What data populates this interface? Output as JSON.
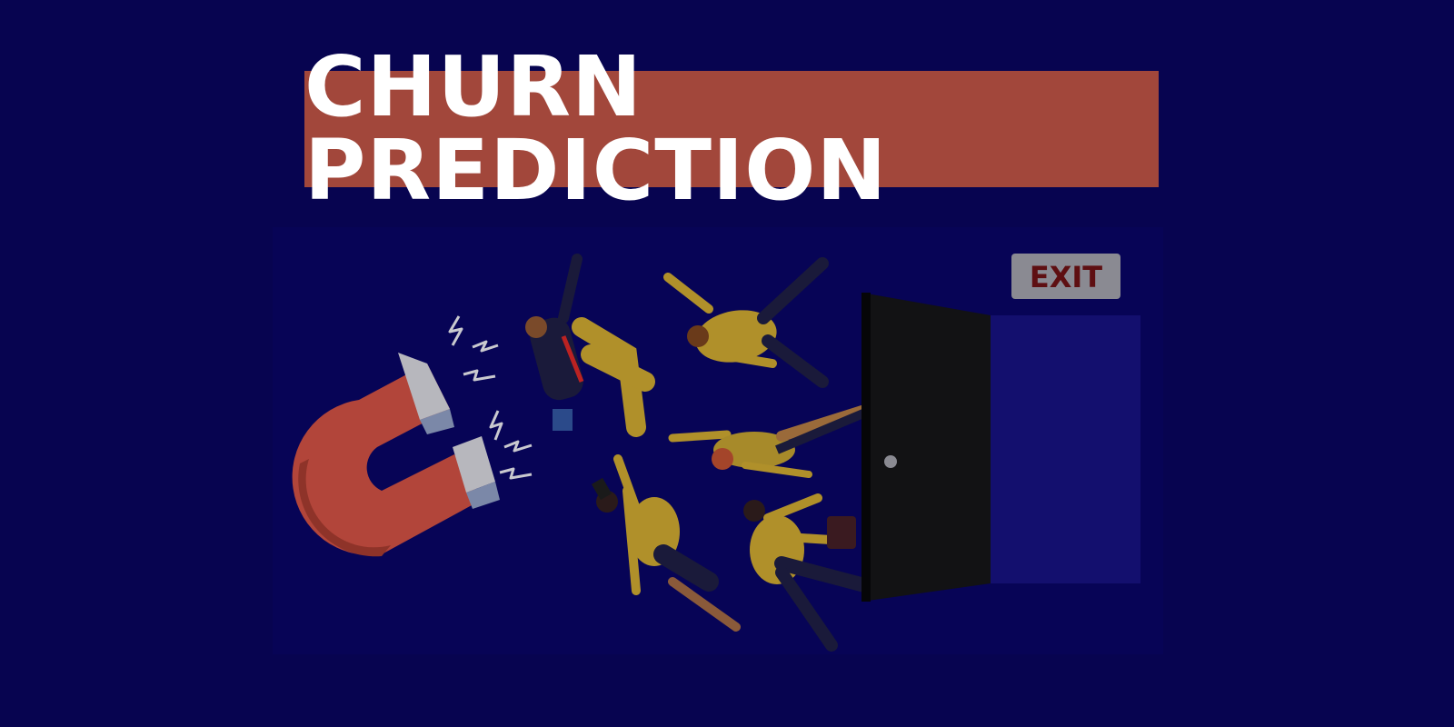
{
  "banner": {
    "title": "CHURN PREDICTION"
  },
  "illustration": {
    "exit_sign": "EXIT",
    "icons": [
      "magnet-icon",
      "person-figure",
      "door-icon",
      "exit-sign"
    ]
  },
  "colors": {
    "background": "#070450",
    "banner": "#a2473b",
    "banner_text": "#ffffff",
    "magnet": "#b2453a",
    "person_yellow": "#b0902a",
    "door": "#121214",
    "doorway": "#130f6e",
    "exit_sign": "#8a8a92",
    "exit_text": "#5e0f12"
  }
}
